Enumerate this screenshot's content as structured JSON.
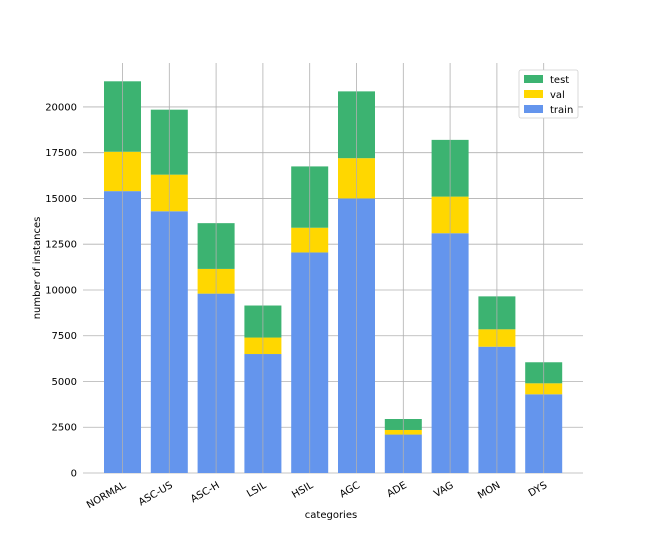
{
  "chart_data": {
    "type": "bar",
    "stacked": true,
    "title": "",
    "xlabel": "categories",
    "ylabel": "number of instances",
    "ylim": [
      0,
      22400
    ],
    "yticks": [
      0,
      2500,
      5000,
      7500,
      10000,
      12500,
      15000,
      17500,
      20000
    ],
    "grid": true,
    "legend_position": "top-right",
    "categories": [
      "NORMAL",
      "ASC-US",
      "ASC-H",
      "LSIL",
      "HSIL",
      "AGC",
      "ADE",
      "VAG",
      "MON",
      "DYS"
    ],
    "series": [
      {
        "name": "train",
        "color": "#6495ED",
        "values": [
          15400,
          14300,
          9800,
          6500,
          12050,
          15000,
          2100,
          13100,
          6900,
          4300
        ]
      },
      {
        "name": "val",
        "color": "#FFD700",
        "values": [
          2150,
          2000,
          1350,
          900,
          1350,
          2200,
          250,
          2000,
          950,
          600
        ]
      },
      {
        "name": "test",
        "color": "#3CB371",
        "values": [
          3850,
          3550,
          2500,
          1750,
          3350,
          3650,
          600,
          3100,
          1800,
          1150
        ]
      }
    ]
  }
}
